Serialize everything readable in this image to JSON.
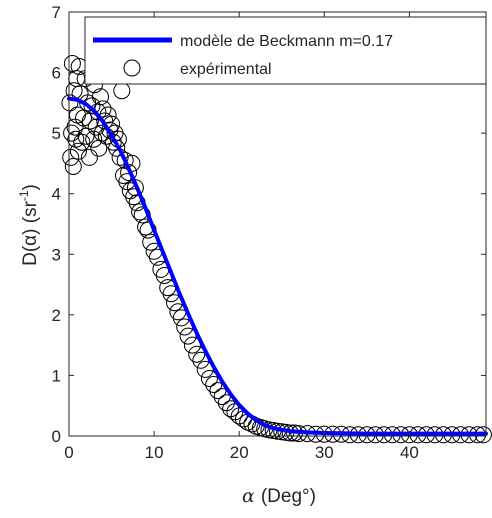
{
  "chart_data": {
    "type": "line",
    "title": "",
    "xlabel_symbol": "α",
    "xlabel_unit": "(Deg°)",
    "ylabel_main": "D(α) (sr",
    "ylabel_exp": "-1",
    "ylabel_close": ")",
    "xlim": [
      0,
      49
    ],
    "ylim": [
      0,
      7
    ],
    "xticks": [
      0,
      10,
      20,
      30,
      40
    ],
    "yticks": [
      0,
      1,
      2,
      3,
      4,
      5,
      6,
      7
    ],
    "grid": false,
    "legend_position": "top-right",
    "colors": {
      "model": "#0000ff",
      "experimental": "#000000"
    },
    "series": [
      {
        "name": "modèle de Beckmann m=0.17",
        "style": "line",
        "x": [
          0,
          1,
          2,
          3,
          4,
          5,
          6,
          7,
          8,
          9,
          10,
          11,
          12,
          13,
          14,
          15,
          16,
          17,
          18,
          19,
          20,
          21,
          22,
          23,
          24,
          25,
          26,
          27,
          28,
          30,
          35,
          40,
          45,
          49
        ],
        "y": [
          5.57,
          5.55,
          5.48,
          5.36,
          5.19,
          4.96,
          4.72,
          4.42,
          4.1,
          3.76,
          3.4,
          3.05,
          2.7,
          2.35,
          2.02,
          1.7,
          1.41,
          1.14,
          0.9,
          0.69,
          0.51,
          0.37,
          0.26,
          0.18,
          0.13,
          0.1,
          0.08,
          0.07,
          0.06,
          0.05,
          0.04,
          0.04,
          0.04,
          0.04
        ]
      },
      {
        "name": "expérimental",
        "style": "marker",
        "x": [
          0.1,
          0.2,
          0.3,
          0.4,
          0.5,
          0.6,
          0.7,
          0.8,
          0.9,
          1.0,
          1.1,
          1.2,
          1.3,
          1.5,
          1.7,
          1.9,
          2.0,
          2.2,
          2.4,
          2.5,
          2.7,
          2.9,
          3.0,
          3.2,
          3.4,
          3.5,
          3.7,
          3.9,
          4.0,
          4.2,
          4.4,
          4.6,
          4.8,
          5.0,
          5.2,
          5.4,
          5.6,
          5.8,
          6.0,
          6.2,
          6.4,
          6.6,
          6.8,
          7.0,
          7.2,
          7.4,
          7.6,
          7.8,
          8.0,
          8.3,
          8.6,
          9.0,
          9.3,
          9.6,
          10.0,
          10.4,
          10.8,
          11.2,
          11.6,
          12.0,
          12.4,
          12.8,
          13.2,
          13.6,
          14.0,
          14.5,
          15.0,
          15.5,
          16.0,
          16.5,
          17.0,
          17.5,
          18.0,
          18.5,
          19.0,
          19.5,
          20.0,
          20.5,
          21.0,
          21.5,
          22.0,
          22.5,
          23.0,
          23.5,
          24.0,
          24.5,
          25.0,
          25.5,
          26.0,
          26.5,
          27.0,
          28.0,
          29.0,
          30.0,
          31.0,
          32.0,
          33.0,
          34.0,
          35.0,
          36.0,
          37.0,
          38.0,
          39.0,
          40.0,
          41.0,
          42.0,
          43.0,
          44.0,
          45.0,
          46.0,
          47.0,
          48.0,
          48.7
        ],
        "y": [
          5.5,
          4.6,
          5.0,
          6.15,
          4.45,
          5.7,
          5.1,
          4.9,
          5.9,
          5.3,
          4.7,
          6.1,
          5.65,
          4.85,
          5.25,
          5.9,
          4.95,
          5.5,
          4.6,
          5.2,
          5.45,
          4.9,
          5.8,
          5.1,
          5.35,
          4.75,
          5.6,
          5.0,
          5.4,
          5.2,
          4.95,
          5.3,
          5.05,
          5.15,
          4.85,
          5.0,
          4.75,
          4.9,
          4.6,
          5.7,
          4.3,
          4.55,
          4.2,
          4.35,
          4.05,
          4.5,
          3.95,
          4.1,
          3.85,
          3.7,
          3.65,
          3.45,
          3.4,
          3.2,
          3.05,
          2.95,
          2.75,
          2.65,
          2.45,
          2.35,
          2.2,
          2.05,
          1.95,
          1.8,
          1.65,
          1.5,
          1.35,
          1.25,
          1.1,
          0.95,
          0.85,
          0.75,
          0.65,
          0.55,
          0.45,
          0.4,
          0.33,
          0.28,
          0.23,
          0.2,
          0.16,
          0.14,
          0.12,
          0.1,
          0.09,
          0.08,
          0.07,
          0.06,
          0.05,
          0.05,
          0.04,
          0.04,
          0.03,
          0.03,
          0.03,
          0.03,
          0.02,
          0.02,
          0.02,
          0.02,
          0.02,
          0.02,
          0.02,
          0.02,
          0.02,
          0.02,
          0.02,
          0.02,
          0.02,
          0.02,
          0.02,
          0.02,
          0.02
        ]
      }
    ]
  }
}
